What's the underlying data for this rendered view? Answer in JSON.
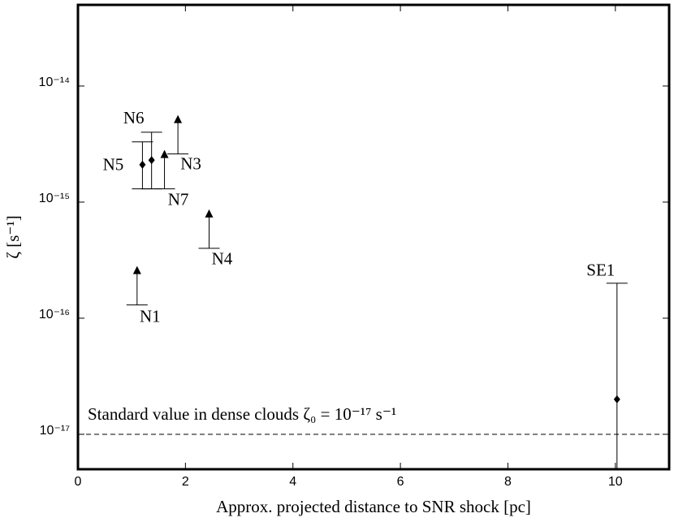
{
  "chart_data": {
    "type": "scatter",
    "xlabel": "Approx. projected distance to SNR shock [pc]",
    "ylabel": "ζ [s⁻¹]",
    "xlim": [
      0,
      11
    ],
    "xticks": [
      0,
      2,
      4,
      6,
      8,
      10
    ],
    "ylim": [
      5e-18,
      5e-14
    ],
    "log_y": true,
    "yticks": [
      {
        "value": 1e-17,
        "label": "10⁻¹⁷"
      },
      {
        "value": 1e-16,
        "label": "10⁻¹⁶"
      },
      {
        "value": 1e-15,
        "label": "10⁻¹⁵"
      },
      {
        "value": 1e-14,
        "label": "10⁻¹⁴"
      }
    ],
    "color": "#000000",
    "reference_line": 1e-17,
    "annotation": "Standard value in dense clouds ζ₀ = 10⁻¹⁷ s⁻¹",
    "points": [
      {
        "label": "N1",
        "x": 1.1,
        "y": 1.3e-16,
        "limit": "lower"
      },
      {
        "label": "N3",
        "x": 1.86,
        "y": 2.6e-15,
        "limit": "lower"
      },
      {
        "label": "N4",
        "x": 2.44,
        "y": 4e-16,
        "limit": "lower"
      },
      {
        "label": "N5",
        "x": 1.2,
        "y": 2.1e-15,
        "err_low": 1.3e-15,
        "err_high": 3.3e-15
      },
      {
        "label": "N6",
        "x": 1.37,
        "y": 2.3e-15,
        "err_low": 1.3e-15,
        "err_high": 4e-15
      },
      {
        "label": "N7",
        "x": 1.61,
        "y": 1.3e-15,
        "limit": "lower"
      },
      {
        "label": "SE1",
        "x": 10.03,
        "y": 2e-17,
        "err_low": null,
        "err_high": 2e-16
      }
    ]
  }
}
